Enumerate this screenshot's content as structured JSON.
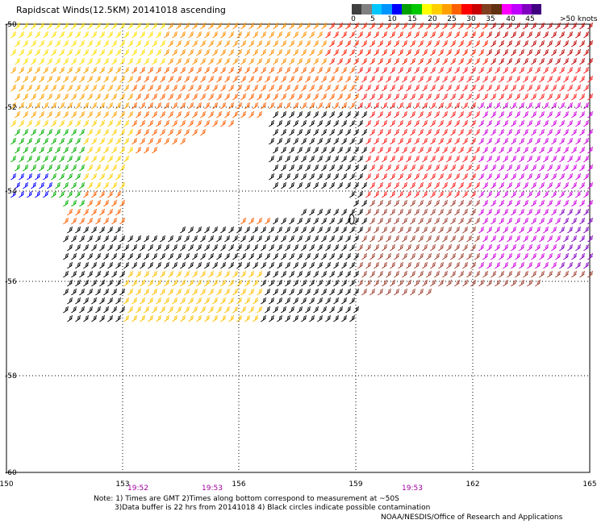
{
  "title": "Rapidscat Winds(12.5KM) 20141018 ascending",
  "legend": {
    "colors": [
      "#404040",
      "#808080",
      "#00c8ff",
      "#0096ff",
      "#0000ff",
      "#00a000",
      "#00c800",
      "#ffff00",
      "#ffd000",
      "#ffa000",
      "#ff6000",
      "#ff0000",
      "#c80000",
      "#804020",
      "#603010",
      "#ff00ff",
      "#c000ff",
      "#8000c0",
      "#400080"
    ],
    "tick_labels": [
      "0",
      "5",
      "10",
      "15",
      "20",
      "25",
      "30",
      "35",
      "40",
      "45",
      ">50 knots"
    ]
  },
  "map": {
    "lon_labels": [
      "150",
      "153",
      "156",
      "159",
      "162",
      "165"
    ],
    "lat_labels": [
      "-50",
      "-52",
      "-54",
      "-56",
      "-58",
      "-60"
    ],
    "time_labels": [
      "19:52",
      "19:53",
      "19:53"
    ]
  },
  "notes": {
    "line1": "Note: 1) Times are GMT 2)Times along bottom correspond to measurement at ~50S",
    "line2": "3)Data buffer is 22 hrs from 20141018 4) Black circles indicate possible contamination"
  },
  "credit": "NOAA/NESDIS/Office of Research and Applications"
}
